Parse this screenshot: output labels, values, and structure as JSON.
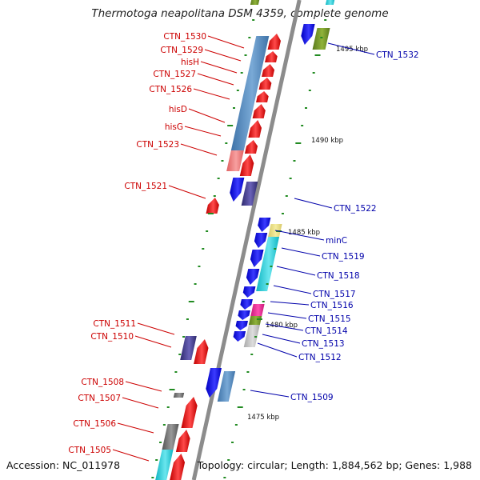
{
  "title": "Thermotoga neapolitana DSM 4359, complete genome",
  "footer": {
    "accession": "Accession: NC_011978",
    "summary": "Topology: circular; Length: 1,884,562 bp; Genes: 1,988"
  },
  "colors": {
    "axis": "#8c8c8c",
    "reverse_label": "#cc0000",
    "forward_label": "#0000aa",
    "tick_mark": "#228b22"
  },
  "ticks": [
    "1495 kbp",
    "1490 kbp",
    "1485 kbp",
    "1480 kbp",
    "1475 kbp"
  ],
  "reverse_labels": [
    "CTN_1530",
    "CTN_1529",
    "hisH",
    "CTN_1527",
    "CTN_1526",
    "hisD",
    "hisG",
    "CTN_1523",
    "CTN_1521",
    "CTN_1511",
    "CTN_1510",
    "CTN_1508",
    "CTN_1507",
    "CTN_1506",
    "CTN_1505"
  ],
  "forward_labels": [
    "CTN_1532",
    "CTN_1522",
    "minC",
    "CTN_1519",
    "CTN_1518",
    "CTN_1517",
    "CTN_1516",
    "CTN_1515",
    "CTN_1514",
    "CTN_1513",
    "CTN_1512",
    "CTN_1509"
  ]
}
